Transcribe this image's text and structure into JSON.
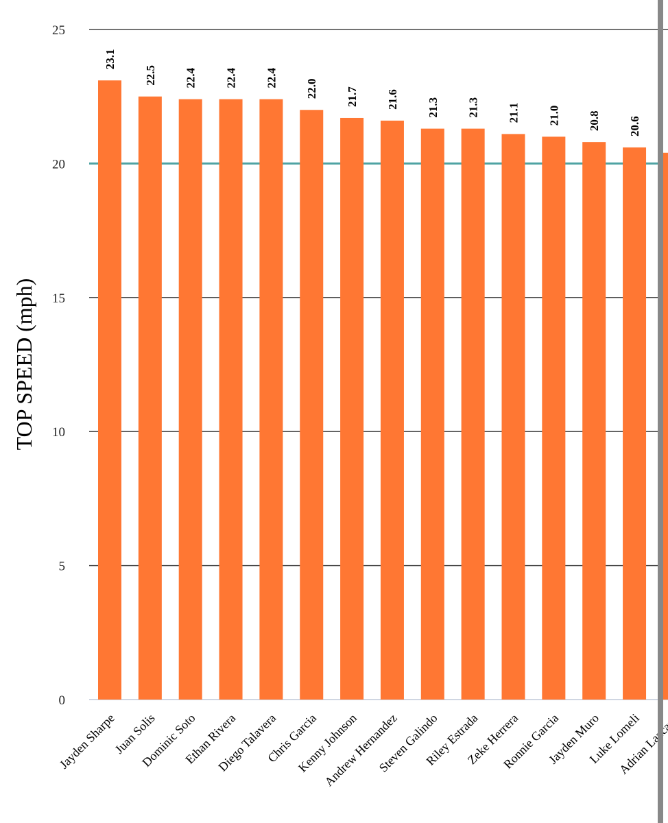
{
  "chart_data": {
    "type": "bar",
    "ylabel": "TOP SPEED (mph)",
    "xlabel": "",
    "ylim": [
      0,
      25
    ],
    "yticks": [
      "0",
      "5",
      "10",
      "15",
      "20",
      "25"
    ],
    "grid": true,
    "reference_line": 20,
    "colors": {
      "bar": "#FF7733",
      "grid": "#444444",
      "reference_line": "#4FA3A3",
      "scroll_divider": "#888888"
    },
    "categories": [
      "Jayden Sharpe",
      "Juan Solis",
      "Dominic Soto",
      "Ethan Rivera",
      "Diego Talavera",
      "Chris Garcia",
      "Kenny Johnson",
      "Andrew Hernandez",
      "Steven Galindo",
      "Riley Estrada",
      "Zeke Herrera",
      "Ronnie Garcia",
      "Jayden Muro",
      "Luke Lomeli",
      "Adrian Lazcano"
    ],
    "values": [
      23.1,
      22.5,
      22.4,
      22.4,
      22.4,
      22.0,
      21.7,
      21.6,
      21.3,
      21.3,
      21.1,
      21.0,
      20.8,
      20.6,
      20.4
    ],
    "value_labels": [
      "23.1",
      "22.5",
      "22.4",
      "22.4",
      "22.4",
      "22.0",
      "21.7",
      "21.6",
      "21.3",
      "21.3",
      "21.1",
      "21.0",
      "20.8",
      "20.6",
      ""
    ]
  }
}
